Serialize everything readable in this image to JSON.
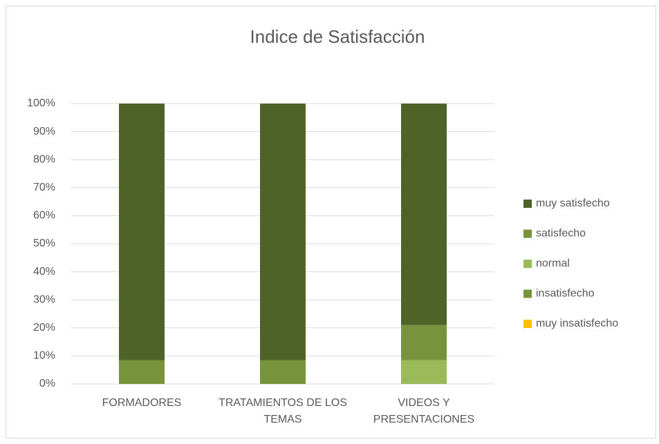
{
  "chart_data": {
    "type": "bar",
    "stacked": true,
    "title": "Indice de Satisfacción",
    "categories": [
      "FORMADORES",
      "TRATAMIENTOS DE LOS TEMAS",
      "VIDEOS Y PRESENTACIONES"
    ],
    "series": [
      {
        "name": "muy insatisfecho",
        "color": "#ffc000",
        "values": [
          0,
          0,
          0
        ]
      },
      {
        "name": "insatisfecho",
        "color": "#77933c",
        "values": [
          0,
          0,
          0
        ]
      },
      {
        "name": "normal",
        "color": "#9bbb59",
        "values": [
          0,
          0,
          8.5
        ]
      },
      {
        "name": "satisfecho",
        "color": "#77933c",
        "values": [
          8.5,
          8.5,
          12.5
        ]
      },
      {
        "name": "muy satisfecho",
        "color": "#4f6228",
        "values": [
          91.5,
          91.5,
          79
        ]
      }
    ],
    "ylim": [
      0,
      100
    ],
    "yticks": [
      {
        "value": 0,
        "label": "0%"
      },
      {
        "value": 10,
        "label": "10%"
      },
      {
        "value": 20,
        "label": "20%"
      },
      {
        "value": 30,
        "label": "30%"
      },
      {
        "value": 40,
        "label": "40%"
      },
      {
        "value": 50,
        "label": "50%"
      },
      {
        "value": 60,
        "label": "60%"
      },
      {
        "value": 70,
        "label": "70%"
      },
      {
        "value": 80,
        "label": "80%"
      },
      {
        "value": 90,
        "label": "90%"
      },
      {
        "value": 100,
        "label": "100%"
      }
    ],
    "grid": true,
    "legend": "right"
  }
}
